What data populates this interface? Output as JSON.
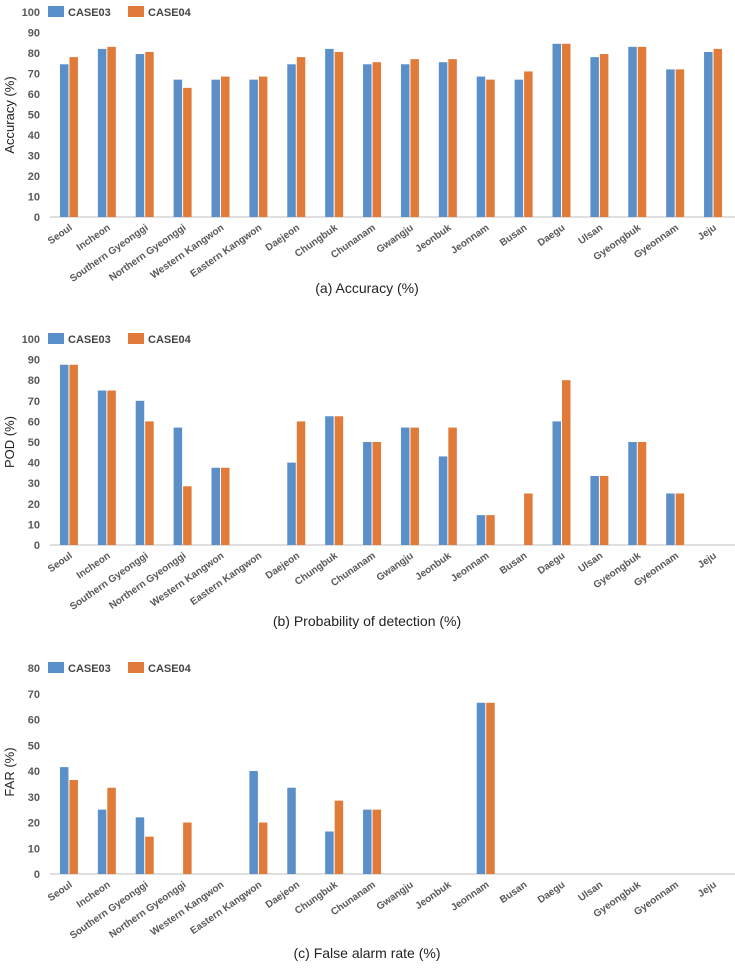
{
  "colors": {
    "case03": "#5b8fc9",
    "case04": "#e07b39",
    "axis": "#bfbfbf"
  },
  "chart_data": [
    {
      "type": "bar",
      "title": "",
      "caption": "(a) Accuracy (%)",
      "ylabel": "Accuracy (%)",
      "xlabel": "",
      "ylim": [
        0,
        100
      ],
      "yticks": [
        0,
        10,
        20,
        30,
        40,
        50,
        60,
        70,
        80,
        90,
        100
      ],
      "grid": false,
      "legend_position": "top-left",
      "categories": [
        "Seoul",
        "Incheon",
        "Southern Gyeonggi",
        "Northern Gyeonggi",
        "Western Kangwon",
        "Eastern Kangwon",
        "Daejeon",
        "Chungbuk",
        "Chunanam",
        "Gwangju",
        "Jeonbuk",
        "Jeonnam",
        "Busan",
        "Daegu",
        "Ulsan",
        "Gyeongbuk",
        "Gyeonnam",
        "Jeju"
      ],
      "series": [
        {
          "name": "CASE03",
          "values": [
            74.5,
            82,
            79.5,
            67,
            67,
            67,
            74.5,
            82,
            74.5,
            74.5,
            75.5,
            68.5,
            67,
            84.5,
            78,
            83,
            72,
            80.5
          ]
        },
        {
          "name": "CASE04",
          "values": [
            78,
            83,
            80.5,
            63,
            68.5,
            68.5,
            78,
            80.5,
            75.5,
            77,
            77,
            67,
            71,
            84.5,
            79.5,
            83,
            72,
            82
          ]
        }
      ]
    },
    {
      "type": "bar",
      "title": "",
      "caption": "(b) Probability of detection (%)",
      "ylabel": "POD (%)",
      "xlabel": "",
      "ylim": [
        0,
        100
      ],
      "yticks": [
        0,
        10,
        20,
        30,
        40,
        50,
        60,
        70,
        80,
        90,
        100
      ],
      "grid": false,
      "legend_position": "top-left",
      "categories": [
        "Seoul",
        "Incheon",
        "Southern Gyeonggi",
        "Northern Gyeonggi",
        "Western Kangwon",
        "Eastern Kangwon",
        "Daejeon",
        "Chungbuk",
        "Chunanam",
        "Gwangju",
        "Jeonbuk",
        "Jeonnam",
        "Busan",
        "Daegu",
        "Ulsan",
        "Gyeongbuk",
        "Gyeonnam",
        "Jeju"
      ],
      "series": [
        {
          "name": "CASE03",
          "values": [
            87.5,
            75,
            70,
            57,
            37.5,
            0,
            40,
            62.5,
            50,
            57,
            43,
            14.5,
            0,
            60,
            33.5,
            50,
            25,
            0
          ]
        },
        {
          "name": "CASE04",
          "values": [
            87.5,
            75,
            60,
            28.5,
            37.5,
            0,
            60,
            62.5,
            50,
            57,
            57,
            14.5,
            25,
            80,
            33.5,
            50,
            25,
            0
          ]
        }
      ]
    },
    {
      "type": "bar",
      "title": "",
      "caption": "(c) False alarm rate (%)",
      "ylabel": "FAR (%)",
      "xlabel": "",
      "ylim": [
        0,
        80
      ],
      "yticks": [
        0,
        10,
        20,
        30,
        40,
        50,
        60,
        70,
        80
      ],
      "grid": false,
      "legend_position": "top-left",
      "categories": [
        "Seoul",
        "Incheon",
        "Southern Gyeonggi",
        "Northern Gyeonggi",
        "Western Kangwon",
        "Eastern Kangwon",
        "Daejeon",
        "Chungbuk",
        "Chunanam",
        "Gwangju",
        "Jeonbuk",
        "Jeonnam",
        "Busan",
        "Daegu",
        "Ulsan",
        "Gyeongbuk",
        "Gyeonnam",
        "Jeju"
      ],
      "series": [
        {
          "name": "CASE03",
          "values": [
            41.5,
            25,
            22,
            0,
            0,
            40,
            33.5,
            16.5,
            25,
            0,
            0,
            66.5,
            0,
            0,
            0,
            0,
            0,
            0
          ]
        },
        {
          "name": "CASE04",
          "values": [
            36.5,
            33.5,
            14.5,
            20,
            0,
            20,
            0,
            28.5,
            25,
            0,
            0,
            66.5,
            0,
            0,
            0,
            0,
            0,
            0
          ]
        }
      ]
    }
  ]
}
